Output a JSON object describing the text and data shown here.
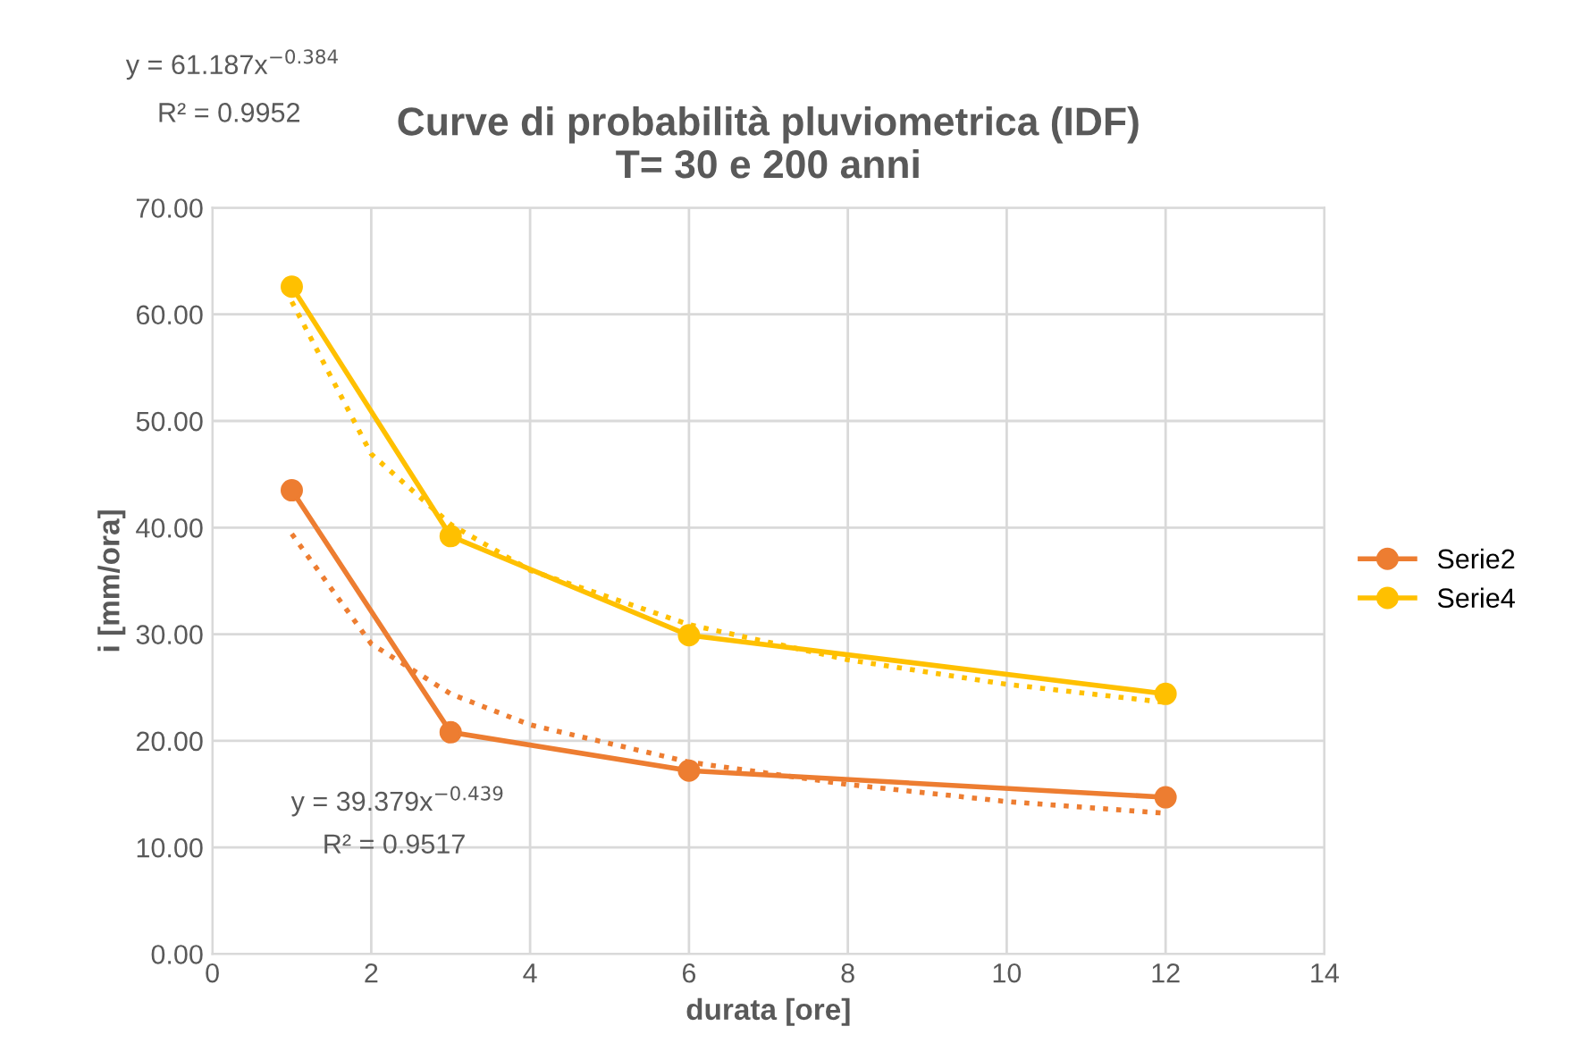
{
  "chart_data": {
    "type": "line",
    "title": "Curve di probabilità pluviometrica (IDF)\nT= 30 e 200 anni",
    "xlabel": "durata [ore]",
    "ylabel": "i [mm/ora]",
    "series": [
      {
        "name": "Serie2",
        "color": "#ed7d31",
        "x": [
          1,
          3,
          6,
          12
        ],
        "values": [
          43.5,
          20.8,
          17.2,
          14.7
        ],
        "marker": "circle",
        "line_style": "solid"
      },
      {
        "name": "Serie4",
        "color": "#ffc000",
        "x": [
          1,
          3,
          6,
          12
        ],
        "values": [
          62.6,
          39.2,
          29.9,
          24.4
        ],
        "marker": "circle",
        "line_style": "solid"
      },
      {
        "color": "#ed7d31",
        "x": [
          1,
          2,
          3,
          4,
          6,
          8,
          10,
          12
        ],
        "values": [
          39.4,
          29.1,
          24.4,
          21.5,
          18.0,
          15.9,
          14.3,
          13.2
        ],
        "marker": "none",
        "line_style": "dotted"
      },
      {
        "color": "#ffc000",
        "x": [
          1,
          2,
          3,
          4,
          6,
          8,
          10,
          12
        ],
        "values": [
          61.2,
          46.9,
          40.3,
          36.0,
          30.9,
          27.6,
          25.3,
          23.6
        ],
        "marker": "none",
        "line_style": "dotted"
      }
    ],
    "annotations": [
      "y = 61.187x$^{−0.384}$",
      "R² = 0.9952",
      "y = 39.379x$^{−0.439}$",
      "R² = 0.9517"
    ],
    "xlim": [
      0,
      14
    ],
    "xticks": [
      0,
      2,
      4,
      6,
      8,
      10,
      12,
      14
    ],
    "ylim": [
      0,
      70
    ],
    "yticks": [
      {
        "value": 0,
        "label": "0.00"
      },
      {
        "value": 10,
        "label": "10.00"
      },
      {
        "value": 20,
        "label": "20.00"
      },
      {
        "value": 30,
        "label": "30.00"
      },
      {
        "value": 40,
        "label": "40.00"
      },
      {
        "value": 50,
        "label": "50.00"
      },
      {
        "value": 60,
        "label": "60.00"
      },
      {
        "value": 70,
        "label": "70.00"
      }
    ],
    "grid": true,
    "legend": "right"
  }
}
